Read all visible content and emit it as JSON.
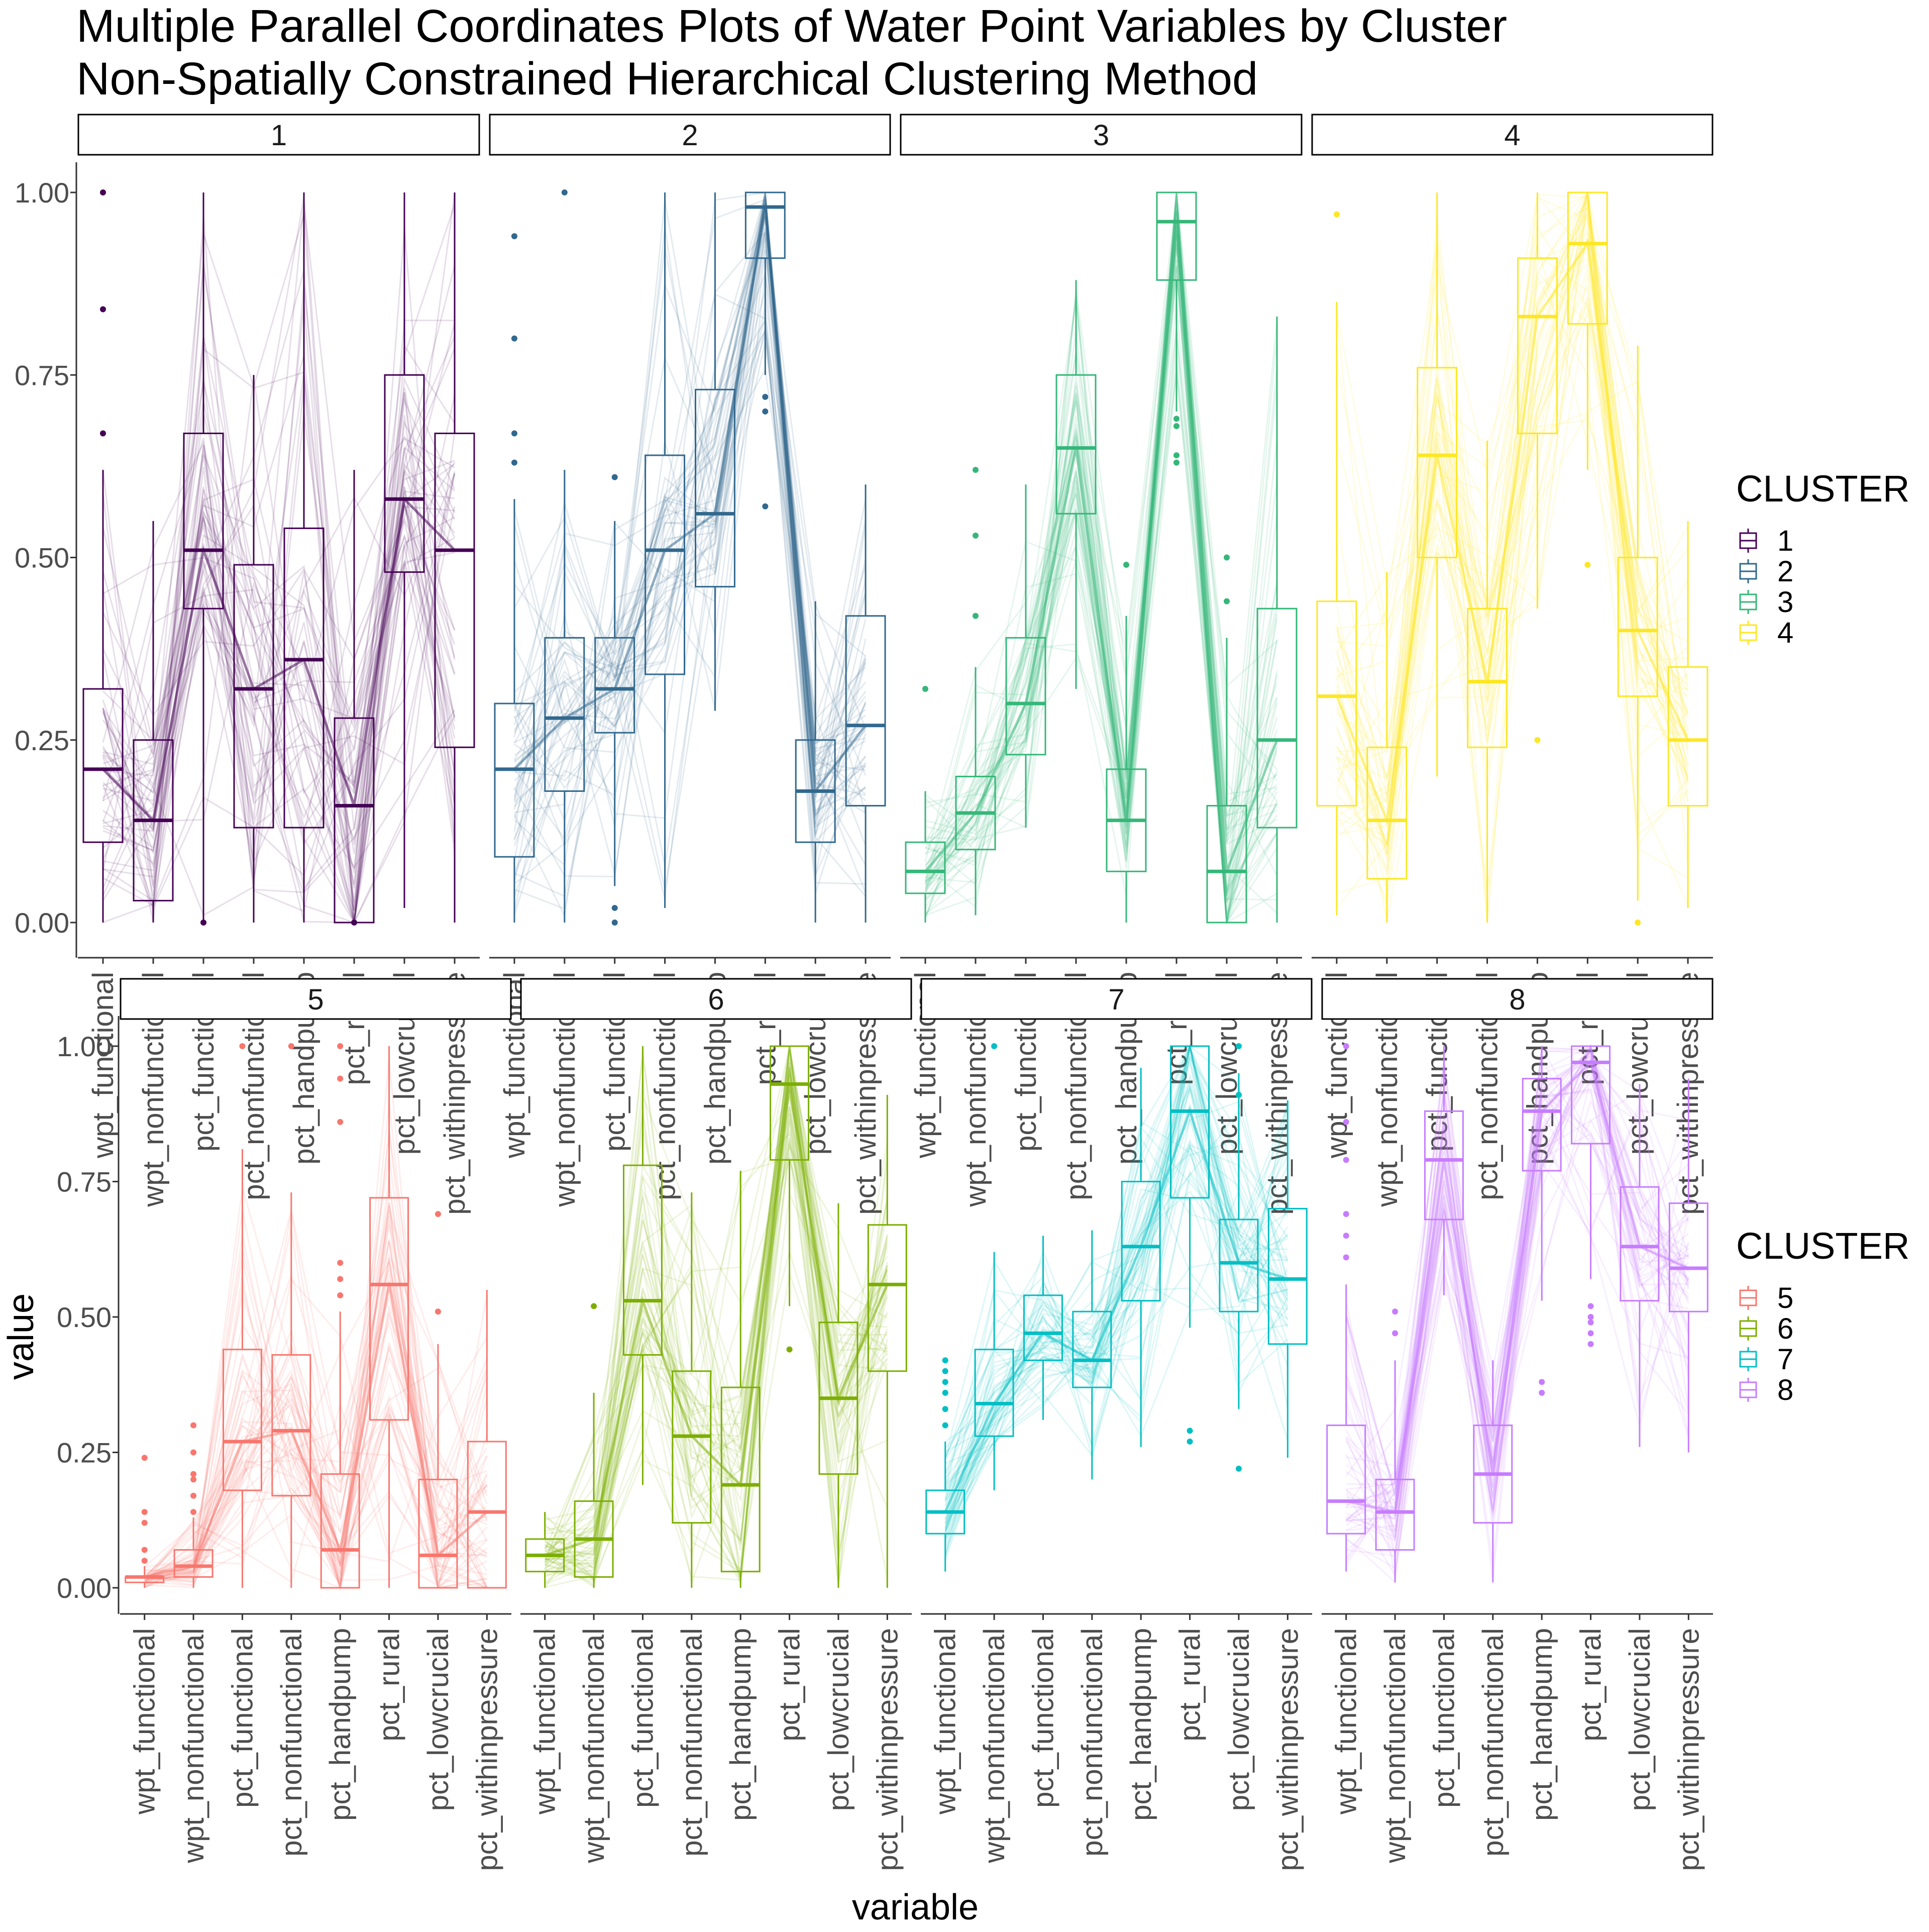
{
  "title_line1": "Multiple Parallel Coordinates Plots of Water Point Variables by Cluster",
  "title_line2": "Non-Spatially Constrained Hierarchical Clustering Method",
  "chart_data": {
    "type": "parallel-coordinates-boxplot",
    "xlabel": "variable",
    "ylabel": "value",
    "ylim": [
      0,
      1
    ],
    "y_ticks": [
      0,
      0.25,
      0.5,
      0.75,
      1
    ],
    "y_tick_labels": [
      "0.00",
      "0.25",
      "0.50",
      "0.75",
      "1.00"
    ],
    "variables": [
      "wpt_functional",
      "wpt_nonfunctional",
      "pct_functional",
      "pct_nonfunctional",
      "pct_handpump",
      "pct_rural",
      "pct_lowcrucial",
      "pct_withinpressure"
    ],
    "legend_title": "CLUSTER",
    "legend_position": "right",
    "grid": false,
    "clusters": [
      {
        "name": "1",
        "color": "#440154",
        "boxes": [
          [
            0,
            0.11,
            0.21,
            0.32,
            0.62
          ],
          [
            0,
            0.03,
            0.14,
            0.25,
            0.55
          ],
          [
            0,
            0.43,
            0.51,
            0.67,
            1
          ],
          [
            0,
            0.13,
            0.32,
            0.49,
            0.75
          ],
          [
            0,
            0.13,
            0.36,
            0.54,
            1
          ],
          [
            0,
            0,
            0.16,
            0.28,
            0.62
          ],
          [
            0.02,
            0.48,
            0.58,
            0.75,
            1
          ],
          [
            0,
            0.24,
            0.51,
            0.67,
            1
          ]
        ],
        "outliers": [
          [
            0,
            0.67
          ],
          [
            0,
            0.84
          ],
          [
            0,
            1.0
          ],
          [
            2,
            0
          ],
          [
            5,
            0
          ]
        ]
      },
      {
        "name": "2",
        "color": "#31688E",
        "boxes": [
          [
            0,
            0.09,
            0.21,
            0.3,
            0.58
          ],
          [
            0,
            0.18,
            0.28,
            0.39,
            0.62
          ],
          [
            0.05,
            0.26,
            0.32,
            0.39,
            0.55
          ],
          [
            0.02,
            0.34,
            0.51,
            0.64,
            1
          ],
          [
            0.29,
            0.46,
            0.56,
            0.73,
            1
          ],
          [
            0.75,
            0.91,
            0.98,
            1,
            1
          ],
          [
            0,
            0.11,
            0.18,
            0.25,
            0.44
          ],
          [
            0,
            0.16,
            0.27,
            0.42,
            0.6
          ]
        ],
        "outliers": [
          [
            0,
            0.63
          ],
          [
            0,
            0.67
          ],
          [
            0,
            0.8
          ],
          [
            0,
            0.94
          ],
          [
            1,
            1.0
          ],
          [
            2,
            0
          ],
          [
            2,
            0.02
          ],
          [
            2,
            0.61
          ],
          [
            5,
            0.57
          ],
          [
            5,
            0.7
          ],
          [
            5,
            0.72
          ]
        ]
      },
      {
        "name": "3",
        "color": "#35B779",
        "boxes": [
          [
            0,
            0.04,
            0.07,
            0.11,
            0.18
          ],
          [
            0.01,
            0.1,
            0.15,
            0.2,
            0.35
          ],
          [
            0.13,
            0.23,
            0.3,
            0.39,
            0.6
          ],
          [
            0.32,
            0.56,
            0.65,
            0.75,
            0.88
          ],
          [
            0,
            0.07,
            0.14,
            0.21,
            0.42
          ],
          [
            0.7,
            0.88,
            0.96,
            1,
            1
          ],
          [
            0,
            0,
            0.07,
            0.16,
            0.39
          ],
          [
            0,
            0.13,
            0.25,
            0.43,
            0.83
          ]
        ],
        "outliers": [
          [
            0,
            0.32
          ],
          [
            1,
            0.42
          ],
          [
            1,
            0.53
          ],
          [
            1,
            0.62
          ],
          [
            4,
            0.49
          ],
          [
            5,
            0.63
          ],
          [
            5,
            0.64
          ],
          [
            5,
            0.68
          ],
          [
            5,
            0.69
          ],
          [
            6,
            0.44
          ],
          [
            6,
            0.5
          ]
        ]
      },
      {
        "name": "4",
        "color": "#FDE725",
        "boxes": [
          [
            0.01,
            0.16,
            0.31,
            0.44,
            0.85
          ],
          [
            0,
            0.06,
            0.14,
            0.24,
            0.48
          ],
          [
            0.2,
            0.5,
            0.64,
            0.76,
            1
          ],
          [
            0,
            0.24,
            0.33,
            0.43,
            0.66
          ],
          [
            0.43,
            0.67,
            0.83,
            0.91,
            1
          ],
          [
            0.62,
            0.82,
            0.93,
            1,
            1
          ],
          [
            0.03,
            0.31,
            0.4,
            0.5,
            0.79
          ],
          [
            0.02,
            0.16,
            0.25,
            0.35,
            0.55
          ]
        ],
        "outliers": [
          [
            0,
            0.97
          ],
          [
            4,
            0.25
          ],
          [
            5,
            0.49
          ],
          [
            6,
            0
          ]
        ]
      },
      {
        "name": "5",
        "color": "#F8766D",
        "boxes": [
          [
            0,
            0.01,
            0.02,
            0.02,
            0.04
          ],
          [
            0,
            0.02,
            0.04,
            0.07,
            0.13
          ],
          [
            0,
            0.18,
            0.27,
            0.44,
            0.81
          ],
          [
            0,
            0.17,
            0.29,
            0.43,
            0.73
          ],
          [
            0,
            0,
            0.07,
            0.21,
            0.51
          ],
          [
            0,
            0.31,
            0.56,
            0.72,
            1
          ],
          [
            0,
            0,
            0.06,
            0.2,
            0.45
          ],
          [
            0,
            0,
            0.14,
            0.27,
            0.55
          ]
        ],
        "outliers": [
          [
            0,
            0.05
          ],
          [
            0,
            0.07
          ],
          [
            0,
            0.12
          ],
          [
            0,
            0.14
          ],
          [
            0,
            0.24
          ],
          [
            1,
            0.14
          ],
          [
            1,
            0.17
          ],
          [
            1,
            0.2
          ],
          [
            1,
            0.21
          ],
          [
            1,
            0.25
          ],
          [
            1,
            0.3
          ],
          [
            2,
            1.0
          ],
          [
            3,
            1.0
          ],
          [
            4,
            0.54
          ],
          [
            4,
            0.57
          ],
          [
            4,
            0.6
          ],
          [
            4,
            0.86
          ],
          [
            4,
            0.94
          ],
          [
            4,
            1.0
          ],
          [
            6,
            0.51
          ],
          [
            6,
            0.69
          ]
        ]
      },
      {
        "name": "6",
        "color": "#7CAE00",
        "boxes": [
          [
            0,
            0.03,
            0.06,
            0.09,
            0.14
          ],
          [
            0,
            0.02,
            0.09,
            0.16,
            0.36
          ],
          [
            0.19,
            0.43,
            0.53,
            0.78,
            1
          ],
          [
            0,
            0.12,
            0.28,
            0.4,
            0.73
          ],
          [
            0,
            0.03,
            0.19,
            0.37,
            0.77
          ],
          [
            0.52,
            0.79,
            0.93,
            1,
            1
          ],
          [
            0,
            0.21,
            0.35,
            0.49,
            0.71
          ],
          [
            0,
            0.4,
            0.56,
            0.67,
            0.91
          ]
        ],
        "outliers": [
          [
            1,
            0.52
          ],
          [
            5,
            0.44
          ]
        ]
      },
      {
        "name": "7",
        "color": "#00BFC4",
        "boxes": [
          [
            0.03,
            0.1,
            0.14,
            0.18,
            0.27
          ],
          [
            0.18,
            0.28,
            0.34,
            0.44,
            0.62
          ],
          [
            0.31,
            0.42,
            0.47,
            0.54,
            0.65
          ],
          [
            0.2,
            0.37,
            0.42,
            0.51,
            0.66
          ],
          [
            0.26,
            0.53,
            0.63,
            0.75,
            0.96
          ],
          [
            0.48,
            0.72,
            0.88,
            1,
            1
          ],
          [
            0.33,
            0.51,
            0.6,
            0.68,
            0.95
          ],
          [
            0.24,
            0.45,
            0.57,
            0.7,
            0.9
          ]
        ],
        "outliers": [
          [
            0,
            0.3
          ],
          [
            0,
            0.33
          ],
          [
            0,
            0.36
          ],
          [
            0,
            0.38
          ],
          [
            0,
            0.4
          ],
          [
            0,
            0.42
          ],
          [
            1,
            1.0
          ],
          [
            5,
            0.27
          ],
          [
            5,
            0.29
          ],
          [
            6,
            0.22
          ],
          [
            6,
            0.91
          ],
          [
            6,
            1.0
          ]
        ]
      },
      {
        "name": "8",
        "color": "#C77CFF",
        "boxes": [
          [
            0.03,
            0.1,
            0.16,
            0.3,
            0.56
          ],
          [
            0.01,
            0.07,
            0.14,
            0.2,
            0.42
          ],
          [
            0.54,
            0.68,
            0.79,
            0.88,
            1
          ],
          [
            0.01,
            0.12,
            0.21,
            0.3,
            0.42
          ],
          [
            0.53,
            0.77,
            0.88,
            0.94,
            1
          ],
          [
            0.57,
            0.82,
            0.97,
            1,
            1
          ],
          [
            0.26,
            0.53,
            0.63,
            0.74,
            0.93
          ],
          [
            0.25,
            0.51,
            0.59,
            0.71,
            0.94
          ]
        ],
        "outliers": [
          [
            0,
            0.61
          ],
          [
            0,
            0.65
          ],
          [
            0,
            0.69
          ],
          [
            0,
            0.79
          ],
          [
            0,
            0.86
          ],
          [
            0,
            1.0
          ],
          [
            1,
            0.47
          ],
          [
            1,
            0.51
          ],
          [
            4,
            0.36
          ],
          [
            4,
            0.38
          ],
          [
            5,
            0.45
          ],
          [
            5,
            0.47
          ],
          [
            5,
            0.49
          ],
          [
            5,
            0.5
          ],
          [
            5,
            0.52
          ]
        ]
      }
    ]
  }
}
